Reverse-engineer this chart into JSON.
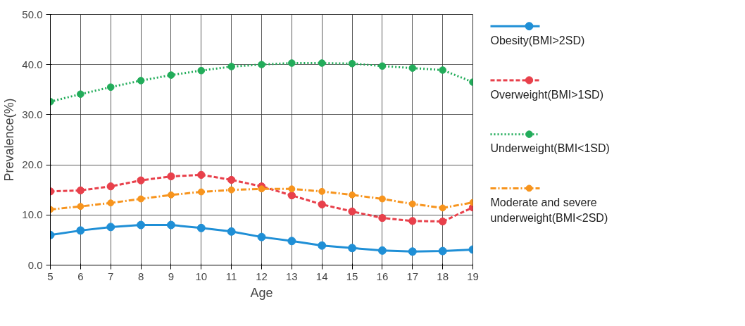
{
  "chart_data": {
    "type": "line",
    "xlabel": "Age",
    "ylabel": "Prevalence(%)",
    "x": [
      5,
      6,
      7,
      8,
      9,
      10,
      11,
      12,
      13,
      14,
      15,
      16,
      17,
      18,
      19
    ],
    "xlim": [
      5,
      19
    ],
    "xticks": [
      5,
      6,
      7,
      8,
      9,
      10,
      11,
      12,
      13,
      14,
      15,
      16,
      17,
      18,
      19
    ],
    "ylim": [
      0,
      50
    ],
    "yticks": [
      {
        "value": 0,
        "label": "0.0"
      },
      {
        "value": 10,
        "label": "10.0"
      },
      {
        "value": 20,
        "label": "20.0"
      },
      {
        "value": 30,
        "label": "30.0"
      },
      {
        "value": 40,
        "label": "40.0"
      },
      {
        "value": 50,
        "label": "50.0"
      }
    ],
    "grid": true,
    "legend": "right",
    "marker": "circle",
    "series": [
      {
        "name": "Obesity(BMI>2SD)",
        "color": "#1f8fd6",
        "line_style": "solid",
        "values": [
          6.0,
          6.9,
          7.6,
          8.0,
          8.0,
          7.4,
          6.7,
          5.6,
          4.8,
          3.9,
          3.4,
          2.9,
          2.7,
          2.8,
          3.1
        ]
      },
      {
        "name": "Overweight(BMI>1SD)",
        "color": "#e8404b",
        "line_style": "dashed",
        "values": [
          14.7,
          14.9,
          15.7,
          16.9,
          17.7,
          18.0,
          17.0,
          15.7,
          13.9,
          12.1,
          10.7,
          9.4,
          8.8,
          8.7,
          11.5
        ]
      },
      {
        "name": "Underweight(BMI<1SD)",
        "color": "#22ac5a",
        "line_style": "dotted",
        "values": [
          32.6,
          34.1,
          35.5,
          36.8,
          37.9,
          38.8,
          39.6,
          40.0,
          40.3,
          40.3,
          40.2,
          39.7,
          39.3,
          38.9,
          36.5
        ]
      },
      {
        "name": "Moderate and severe underweight(BMI<2SD)",
        "color": "#f7941d",
        "line_style": "dashdot",
        "values": [
          11.1,
          11.7,
          12.4,
          13.2,
          14.0,
          14.6,
          15.0,
          15.2,
          15.2,
          14.7,
          14.0,
          13.2,
          12.2,
          11.4,
          12.5
        ]
      }
    ]
  }
}
